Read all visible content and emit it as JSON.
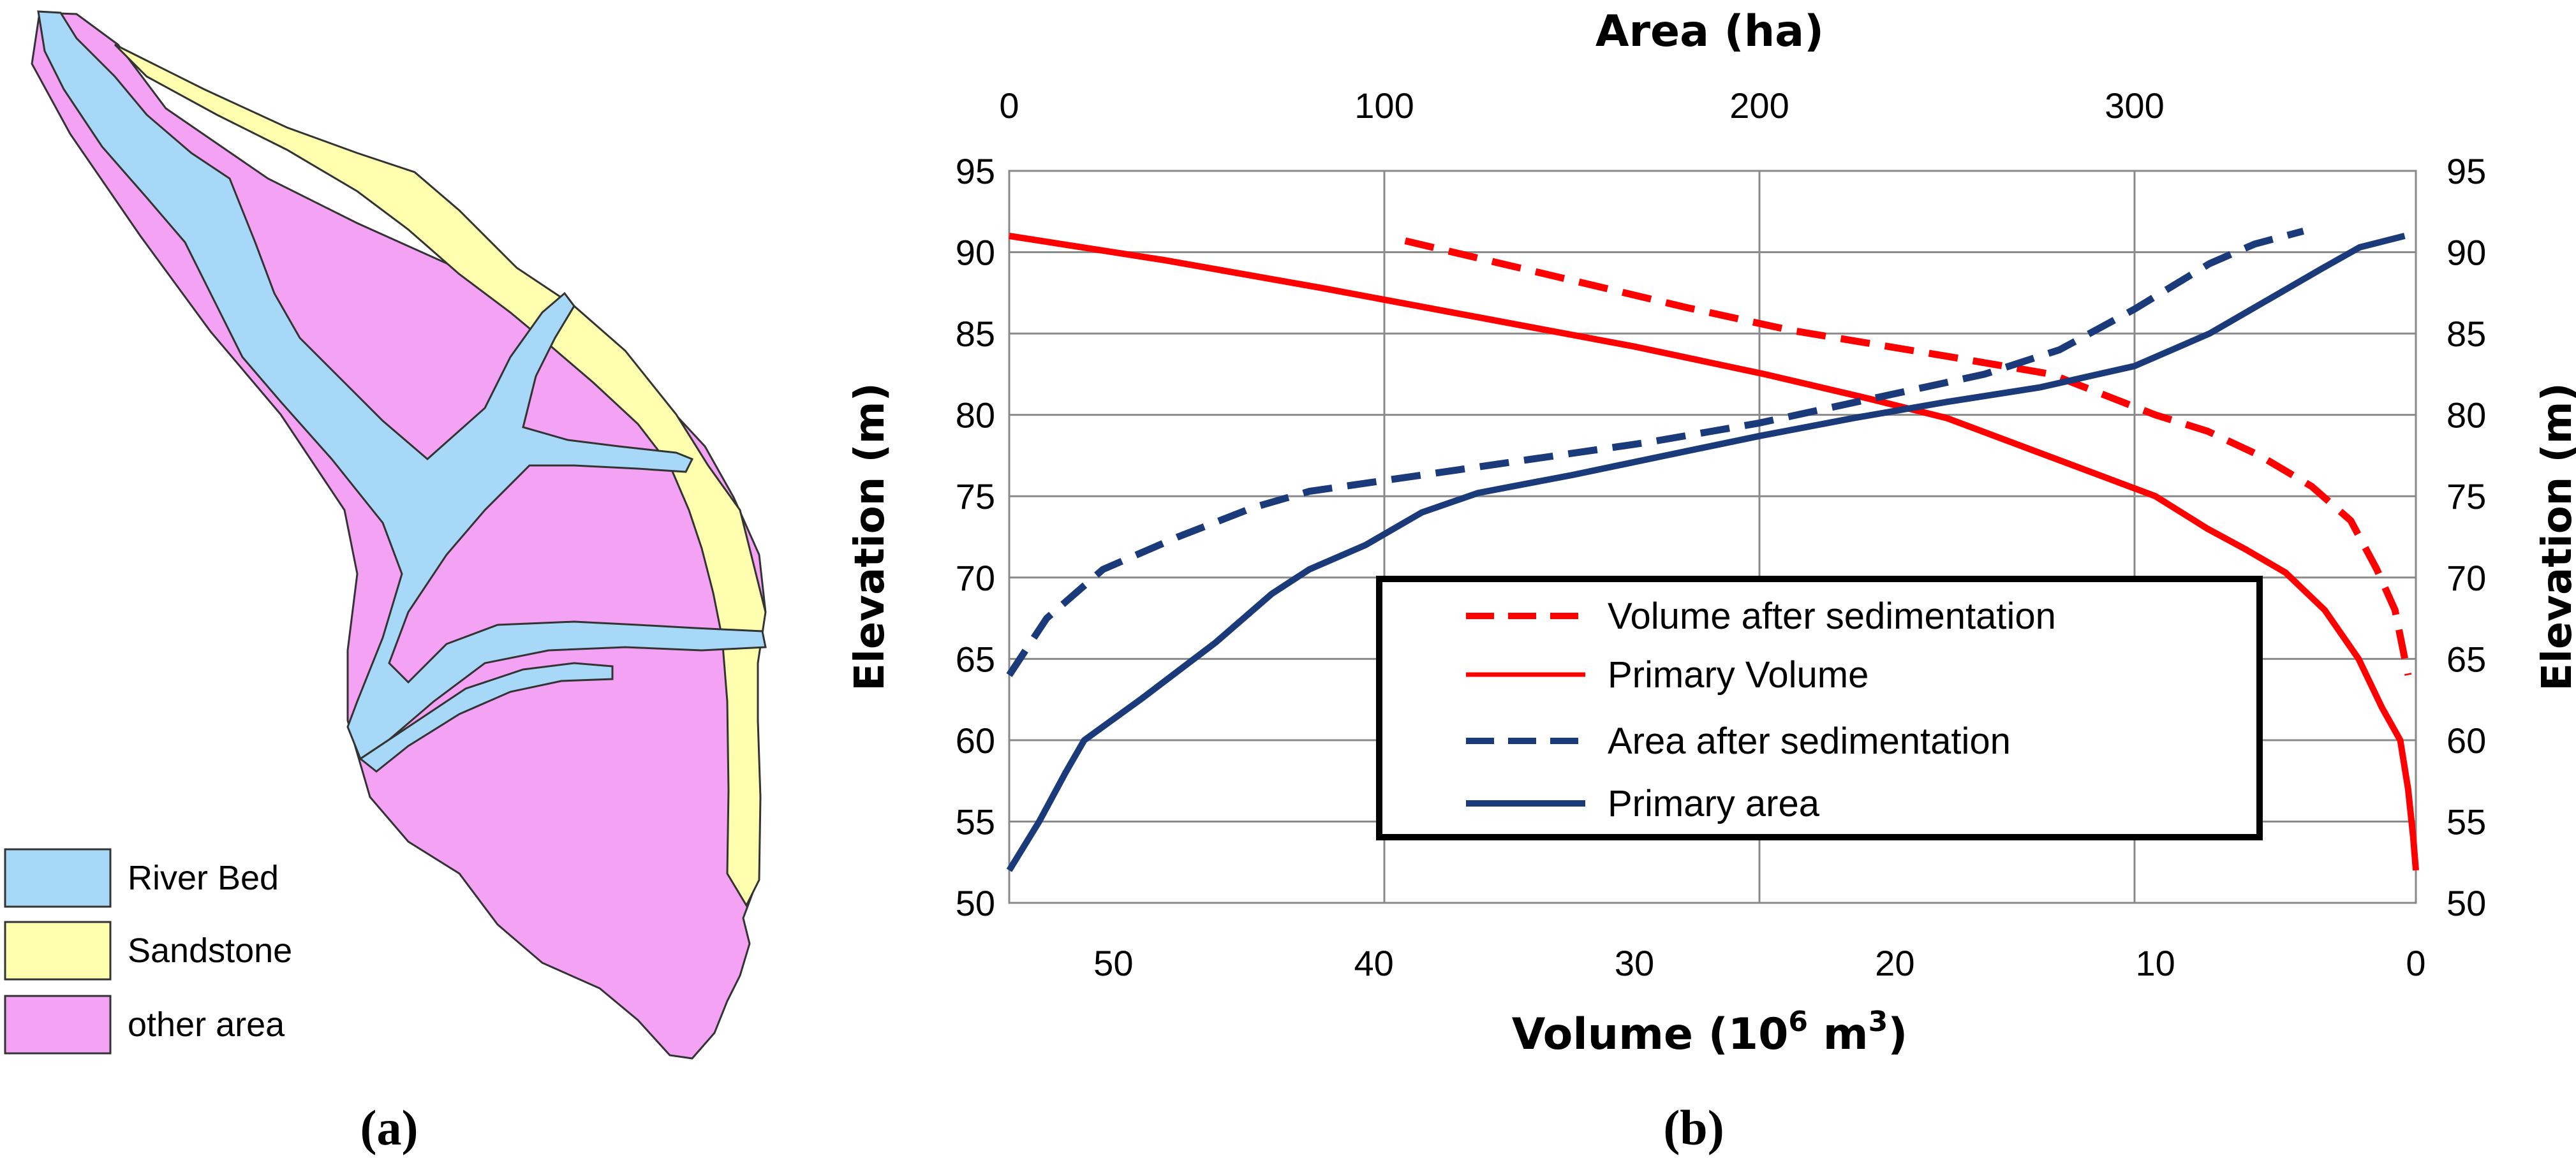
{
  "panel_a": {
    "label_open": "(",
    "label_letter": "a",
    "label_close": ")",
    "legend": [
      {
        "label": "River Bed",
        "color": "#A8D8F8"
      },
      {
        "label": "Sandstone",
        "color": "#FFFFB0"
      },
      {
        "label": "other area",
        "color": "#F4A2F4"
      }
    ]
  },
  "panel_b": {
    "label_open": "(",
    "label_letter": "b",
    "label_close": ")"
  },
  "chart_data": {
    "type": "line",
    "top_axis": {
      "label": "Area (ha)",
      "range": [
        0,
        375
      ],
      "ticks": [
        0,
        100,
        200,
        300
      ]
    },
    "bottom_axis": {
      "label_prefix": "Volume (10",
      "label_sup": "6",
      "label_suffix": " m",
      "label_sup2": "3",
      "label_close": ")",
      "range": [
        54,
        0
      ],
      "ticks": [
        50,
        40,
        30,
        20,
        10,
        0
      ]
    },
    "left_axis": {
      "label": "Elevation (m)",
      "range": [
        50,
        95
      ],
      "ticks": [
        50,
        55,
        60,
        65,
        70,
        75,
        80,
        85,
        90,
        95
      ]
    },
    "right_axis": {
      "label": "Elevation (m)",
      "range": [
        50,
        95
      ],
      "ticks": [
        50,
        55,
        60,
        65,
        70,
        75,
        80,
        85,
        90,
        95
      ]
    },
    "grid": true,
    "legend_position": "lower-right inside plot",
    "series": [
      {
        "name": "Volume after sedimentation",
        "axis": "volume",
        "color": "#FF0000",
        "style": "dashed",
        "points": [
          [
            38.8,
            90.7
          ],
          [
            33,
            88.5
          ],
          [
            28,
            86.6
          ],
          [
            24,
            85.2
          ],
          [
            18,
            83.6
          ],
          [
            14,
            82.5
          ],
          [
            10,
            80
          ],
          [
            8,
            79
          ],
          [
            6,
            77.5
          ],
          [
            4,
            75.6
          ],
          [
            2.5,
            73.5
          ],
          [
            1.5,
            70.5
          ],
          [
            0.8,
            68
          ],
          [
            0.3,
            64
          ]
        ]
      },
      {
        "name": "Primary Volume",
        "axis": "volume",
        "color": "#FF0000",
        "style": "solid",
        "points": [
          [
            54,
            91
          ],
          [
            48,
            89.5
          ],
          [
            42,
            87.8
          ],
          [
            36,
            86
          ],
          [
            30,
            84.2
          ],
          [
            25,
            82.5
          ],
          [
            21,
            81
          ],
          [
            18,
            79.8
          ],
          [
            15,
            78
          ],
          [
            12,
            76.2
          ],
          [
            10,
            75
          ],
          [
            8,
            73
          ],
          [
            6.5,
            71.7
          ],
          [
            5,
            70.3
          ],
          [
            3.5,
            68
          ],
          [
            2.2,
            65
          ],
          [
            1.3,
            62
          ],
          [
            0.6,
            60
          ],
          [
            0.3,
            57
          ],
          [
            0.1,
            54
          ],
          [
            0,
            52
          ]
        ]
      },
      {
        "name": "Area after sedimentation",
        "axis": "area",
        "color": "#1A3A7A",
        "style": "dashed",
        "points": [
          [
            0,
            64
          ],
          [
            10,
            67.5
          ],
          [
            25,
            70.5
          ],
          [
            45,
            72.5
          ],
          [
            65,
            74.3
          ],
          [
            80,
            75.3
          ],
          [
            110,
            76.3
          ],
          [
            140,
            77.3
          ],
          [
            170,
            78.3
          ],
          [
            200,
            79.5
          ],
          [
            230,
            81
          ],
          [
            260,
            82.5
          ],
          [
            280,
            84
          ],
          [
            300,
            86.5
          ],
          [
            320,
            89.3
          ],
          [
            332,
            90.5
          ],
          [
            345,
            91.3
          ]
        ]
      },
      {
        "name": "Primary area",
        "axis": "area",
        "color": "#1A3A7A",
        "style": "solid",
        "points": [
          [
            0,
            52
          ],
          [
            8,
            55
          ],
          [
            15,
            58
          ],
          [
            20,
            60
          ],
          [
            35,
            62.5
          ],
          [
            55,
            66
          ],
          [
            70,
            69
          ],
          [
            80,
            70.5
          ],
          [
            95,
            72
          ],
          [
            110,
            74
          ],
          [
            125,
            75.2
          ],
          [
            150,
            76.3
          ],
          [
            175,
            77.5
          ],
          [
            200,
            78.7
          ],
          [
            225,
            79.8
          ],
          [
            250,
            80.8
          ],
          [
            275,
            81.7
          ],
          [
            300,
            83
          ],
          [
            320,
            85
          ],
          [
            335,
            87
          ],
          [
            350,
            89
          ],
          [
            360,
            90.3
          ],
          [
            372,
            91
          ]
        ]
      }
    ]
  }
}
